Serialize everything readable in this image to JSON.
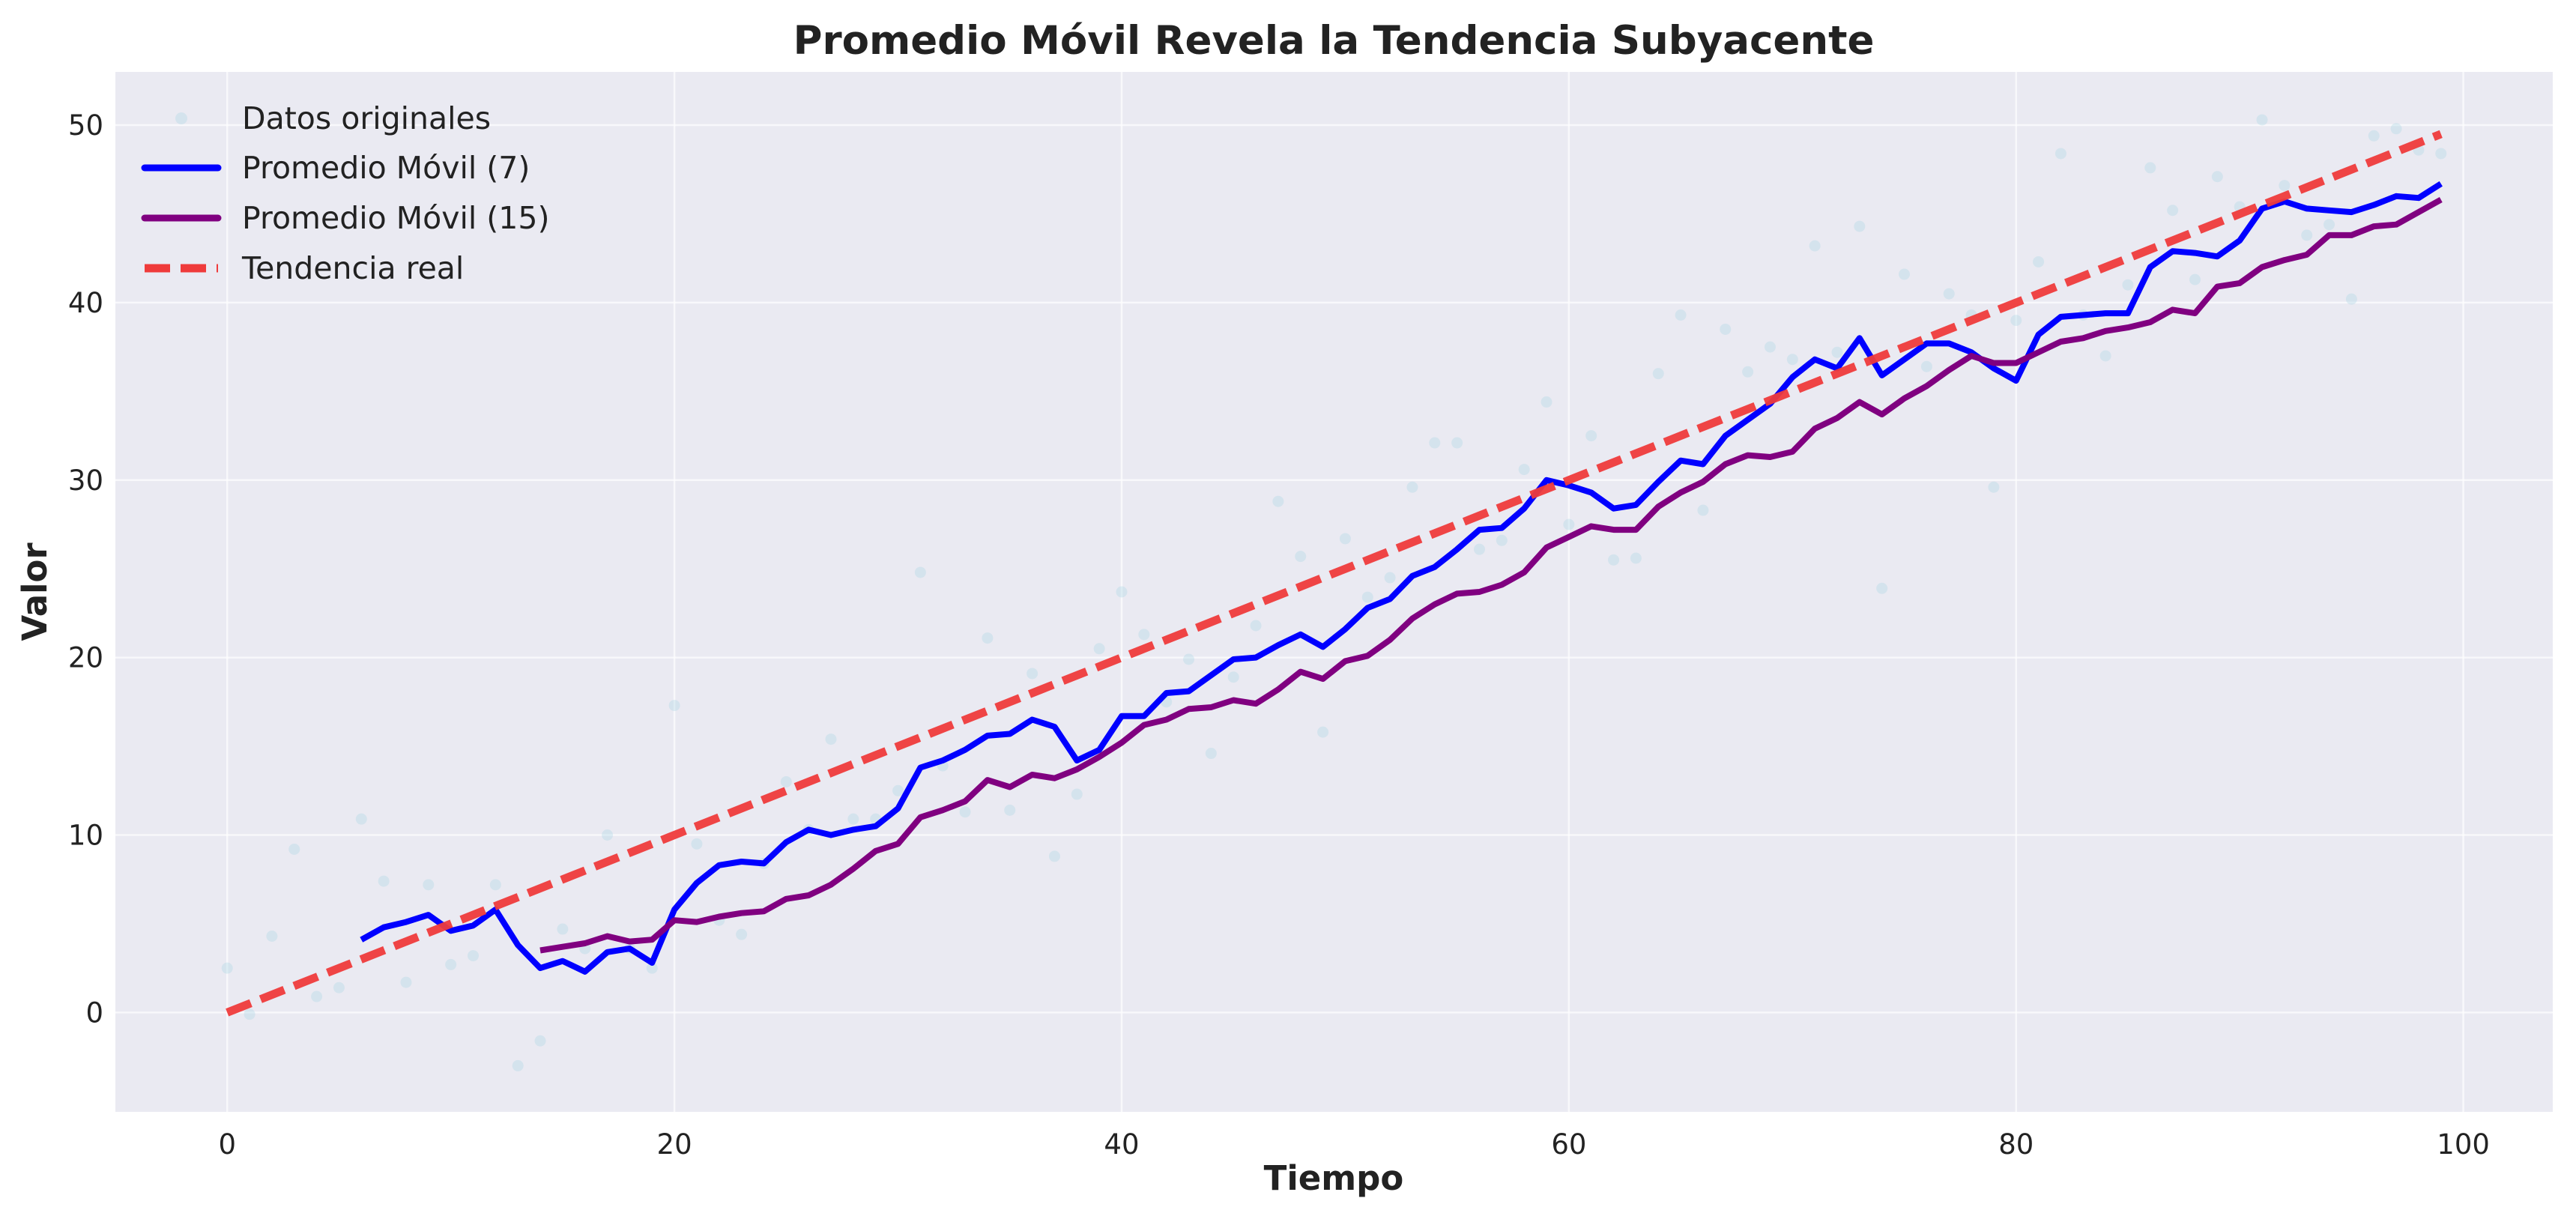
{
  "chart_data": {
    "type": "line",
    "title": "Promedio Móvil Revela la Tendencia Subyacente",
    "xlabel": "Tiempo",
    "ylabel": "Valor",
    "xlim": [
      -5,
      104
    ],
    "ylim": [
      -5.6,
      53
    ],
    "xticks": [
      0,
      20,
      40,
      60,
      80,
      100
    ],
    "yticks": [
      0,
      10,
      20,
      30,
      40,
      50
    ],
    "grid": true,
    "legend_position": "top-left",
    "colors": {
      "plot_bg": "#eaeaf2",
      "grid": "#ffffff",
      "scatter": "#add8e6",
      "ma7": "#0000ff",
      "ma15": "#800080",
      "trend": "#ef3b3b"
    },
    "legend": [
      "Datos originales",
      "Promedio Móvil (7)",
      "Promedio Móvil (15)",
      "Tendencia real"
    ],
    "series": [
      {
        "name": "Datos originales",
        "kind": "scatter",
        "x": [
          0,
          1,
          2,
          3,
          4,
          5,
          6,
          7,
          8,
          9,
          10,
          11,
          12,
          13,
          14,
          15,
          16,
          17,
          18,
          19,
          20,
          21,
          22,
          23,
          24,
          25,
          26,
          27,
          28,
          29,
          30,
          31,
          32,
          33,
          34,
          35,
          36,
          37,
          38,
          39,
          40,
          41,
          42,
          43,
          44,
          45,
          46,
          47,
          48,
          49,
          50,
          51,
          52,
          53,
          54,
          55,
          56,
          57,
          58,
          59,
          60,
          61,
          62,
          63,
          64,
          65,
          66,
          67,
          68,
          69,
          70,
          71,
          72,
          73,
          74,
          75,
          76,
          77,
          78,
          79,
          80,
          81,
          82,
          83,
          84,
          85,
          86,
          87,
          88,
          89,
          90,
          91,
          92,
          93,
          94,
          95,
          96,
          97,
          98,
          99
        ],
        "y": [
          2.5,
          -0.1,
          4.3,
          9.2,
          0.9,
          1.4,
          10.9,
          7.4,
          1.7,
          7.2,
          2.7,
          3.2,
          7.2,
          -3.0,
          -1.6,
          4.7,
          3.6,
          10.0,
          3.6,
          2.5,
          17.3,
          9.5,
          5.2,
          4.4,
          8.4,
          13.0,
          10.3,
          15.4,
          10.9,
          10.9,
          12.5,
          24.8,
          13.9,
          11.3,
          21.1,
          11.4,
          19.1,
          8.8,
          12.3,
          20.5,
          23.7,
          21.3,
          17.5,
          19.9,
          14.6,
          18.9,
          21.8,
          28.8,
          25.7,
          15.8,
          26.7,
          23.4,
          24.5,
          29.6,
          32.1,
          32.1,
          26.1,
          26.6,
          30.6,
          34.4,
          27.5,
          32.5,
          25.5,
          25.6,
          36.0,
          39.3,
          28.3,
          38.5,
          36.1,
          37.5,
          36.8,
          43.2,
          37.2,
          44.3,
          23.9,
          41.6,
          36.4,
          40.5,
          39.3,
          29.6,
          39.0,
          42.3,
          48.4,
          39.3,
          37.0,
          41.0,
          47.6,
          45.2,
          41.3,
          47.1,
          45.4,
          50.3,
          46.6,
          43.8,
          44.4,
          40.2,
          49.4,
          49.8,
          48.6,
          48.4
        ]
      },
      {
        "name": "Promedio Móvil (7)",
        "kind": "line",
        "x": [
          6,
          7,
          8,
          9,
          10,
          11,
          12,
          13,
          14,
          15,
          16,
          17,
          18,
          19,
          20,
          21,
          22,
          23,
          24,
          25,
          26,
          27,
          28,
          29,
          30,
          31,
          32,
          33,
          34,
          35,
          36,
          37,
          38,
          39,
          40,
          41,
          42,
          43,
          44,
          45,
          46,
          47,
          48,
          49,
          50,
          51,
          52,
          53,
          54,
          55,
          56,
          57,
          58,
          59,
          60,
          61,
          62,
          63,
          64,
          65,
          66,
          67,
          68,
          69,
          70,
          71,
          72,
          73,
          74,
          75,
          76,
          77,
          78,
          79,
          80,
          81,
          82,
          83,
          84,
          85,
          86,
          87,
          88,
          89,
          90,
          91,
          92,
          93,
          94,
          95,
          96,
          97,
          98,
          99
        ],
        "y": [
          4.1,
          4.8,
          5.1,
          5.5,
          4.6,
          4.9,
          5.8,
          3.8,
          2.5,
          2.9,
          2.3,
          3.4,
          3.6,
          2.8,
          5.8,
          7.3,
          8.3,
          8.5,
          8.4,
          9.6,
          10.3,
          10.0,
          10.3,
          10.5,
          11.5,
          13.8,
          14.2,
          14.8,
          15.6,
          15.7,
          16.5,
          16.1,
          14.2,
          14.8,
          16.7,
          16.7,
          18.0,
          18.1,
          19.0,
          19.9,
          20.0,
          20.7,
          21.3,
          20.6,
          21.6,
          22.8,
          23.3,
          24.6,
          25.1,
          26.1,
          27.2,
          27.3,
          28.4,
          30.0,
          29.7,
          29.3,
          28.4,
          28.6,
          29.9,
          31.1,
          30.9,
          32.5,
          33.4,
          34.3,
          35.8,
          36.8,
          36.3,
          38.0,
          35.9,
          36.8,
          37.7,
          37.7,
          37.2,
          36.3,
          35.6,
          38.2,
          39.2,
          39.3,
          39.4,
          39.4,
          42.0,
          42.9,
          42.8,
          42.6,
          43.5,
          45.3,
          45.7,
          45.3,
          45.2,
          45.1,
          45.5,
          46.0,
          45.9,
          46.7
        ]
      },
      {
        "name": "Promedio Móvil (15)",
        "kind": "line",
        "x": [
          14,
          15,
          16,
          17,
          18,
          19,
          20,
          21,
          22,
          23,
          24,
          25,
          26,
          27,
          28,
          29,
          30,
          31,
          32,
          33,
          34,
          35,
          36,
          37,
          38,
          39,
          40,
          41,
          42,
          43,
          44,
          45,
          46,
          47,
          48,
          49,
          50,
          51,
          52,
          53,
          54,
          55,
          56,
          57,
          58,
          59,
          60,
          61,
          62,
          63,
          64,
          65,
          66,
          67,
          68,
          69,
          70,
          71,
          72,
          73,
          74,
          75,
          76,
          77,
          78,
          79,
          80,
          81,
          82,
          83,
          84,
          85,
          86,
          87,
          88,
          89,
          90,
          91,
          92,
          93,
          94,
          95,
          96,
          97,
          98,
          99
        ],
        "y": [
          3.5,
          3.7,
          3.9,
          4.3,
          4.0,
          4.1,
          5.2,
          5.1,
          5.4,
          5.6,
          5.7,
          6.4,
          6.6,
          7.2,
          8.1,
          9.1,
          9.5,
          11.0,
          11.4,
          11.9,
          13.1,
          12.7,
          13.4,
          13.2,
          13.7,
          14.4,
          15.2,
          16.2,
          16.5,
          17.1,
          17.2,
          17.6,
          17.4,
          18.2,
          19.2,
          18.8,
          19.8,
          20.1,
          21.0,
          22.2,
          23.0,
          23.6,
          23.7,
          24.1,
          24.8,
          26.2,
          26.8,
          27.4,
          27.2,
          27.2,
          28.5,
          29.3,
          29.9,
          30.9,
          31.4,
          31.3,
          31.6,
          32.9,
          33.5,
          34.4,
          33.7,
          34.6,
          35.3,
          36.2,
          37.0,
          36.6,
          36.6,
          37.2,
          37.8,
          38.0,
          38.4,
          38.6,
          38.9,
          39.6,
          39.4,
          40.9,
          41.1,
          42.0,
          42.4,
          42.7,
          43.8,
          43.8,
          44.3,
          44.4,
          45.1,
          45.8
        ]
      },
      {
        "name": "Tendencia real",
        "kind": "line-dashed",
        "x": [
          0,
          99
        ],
        "y": [
          0,
          49.5
        ]
      }
    ]
  }
}
